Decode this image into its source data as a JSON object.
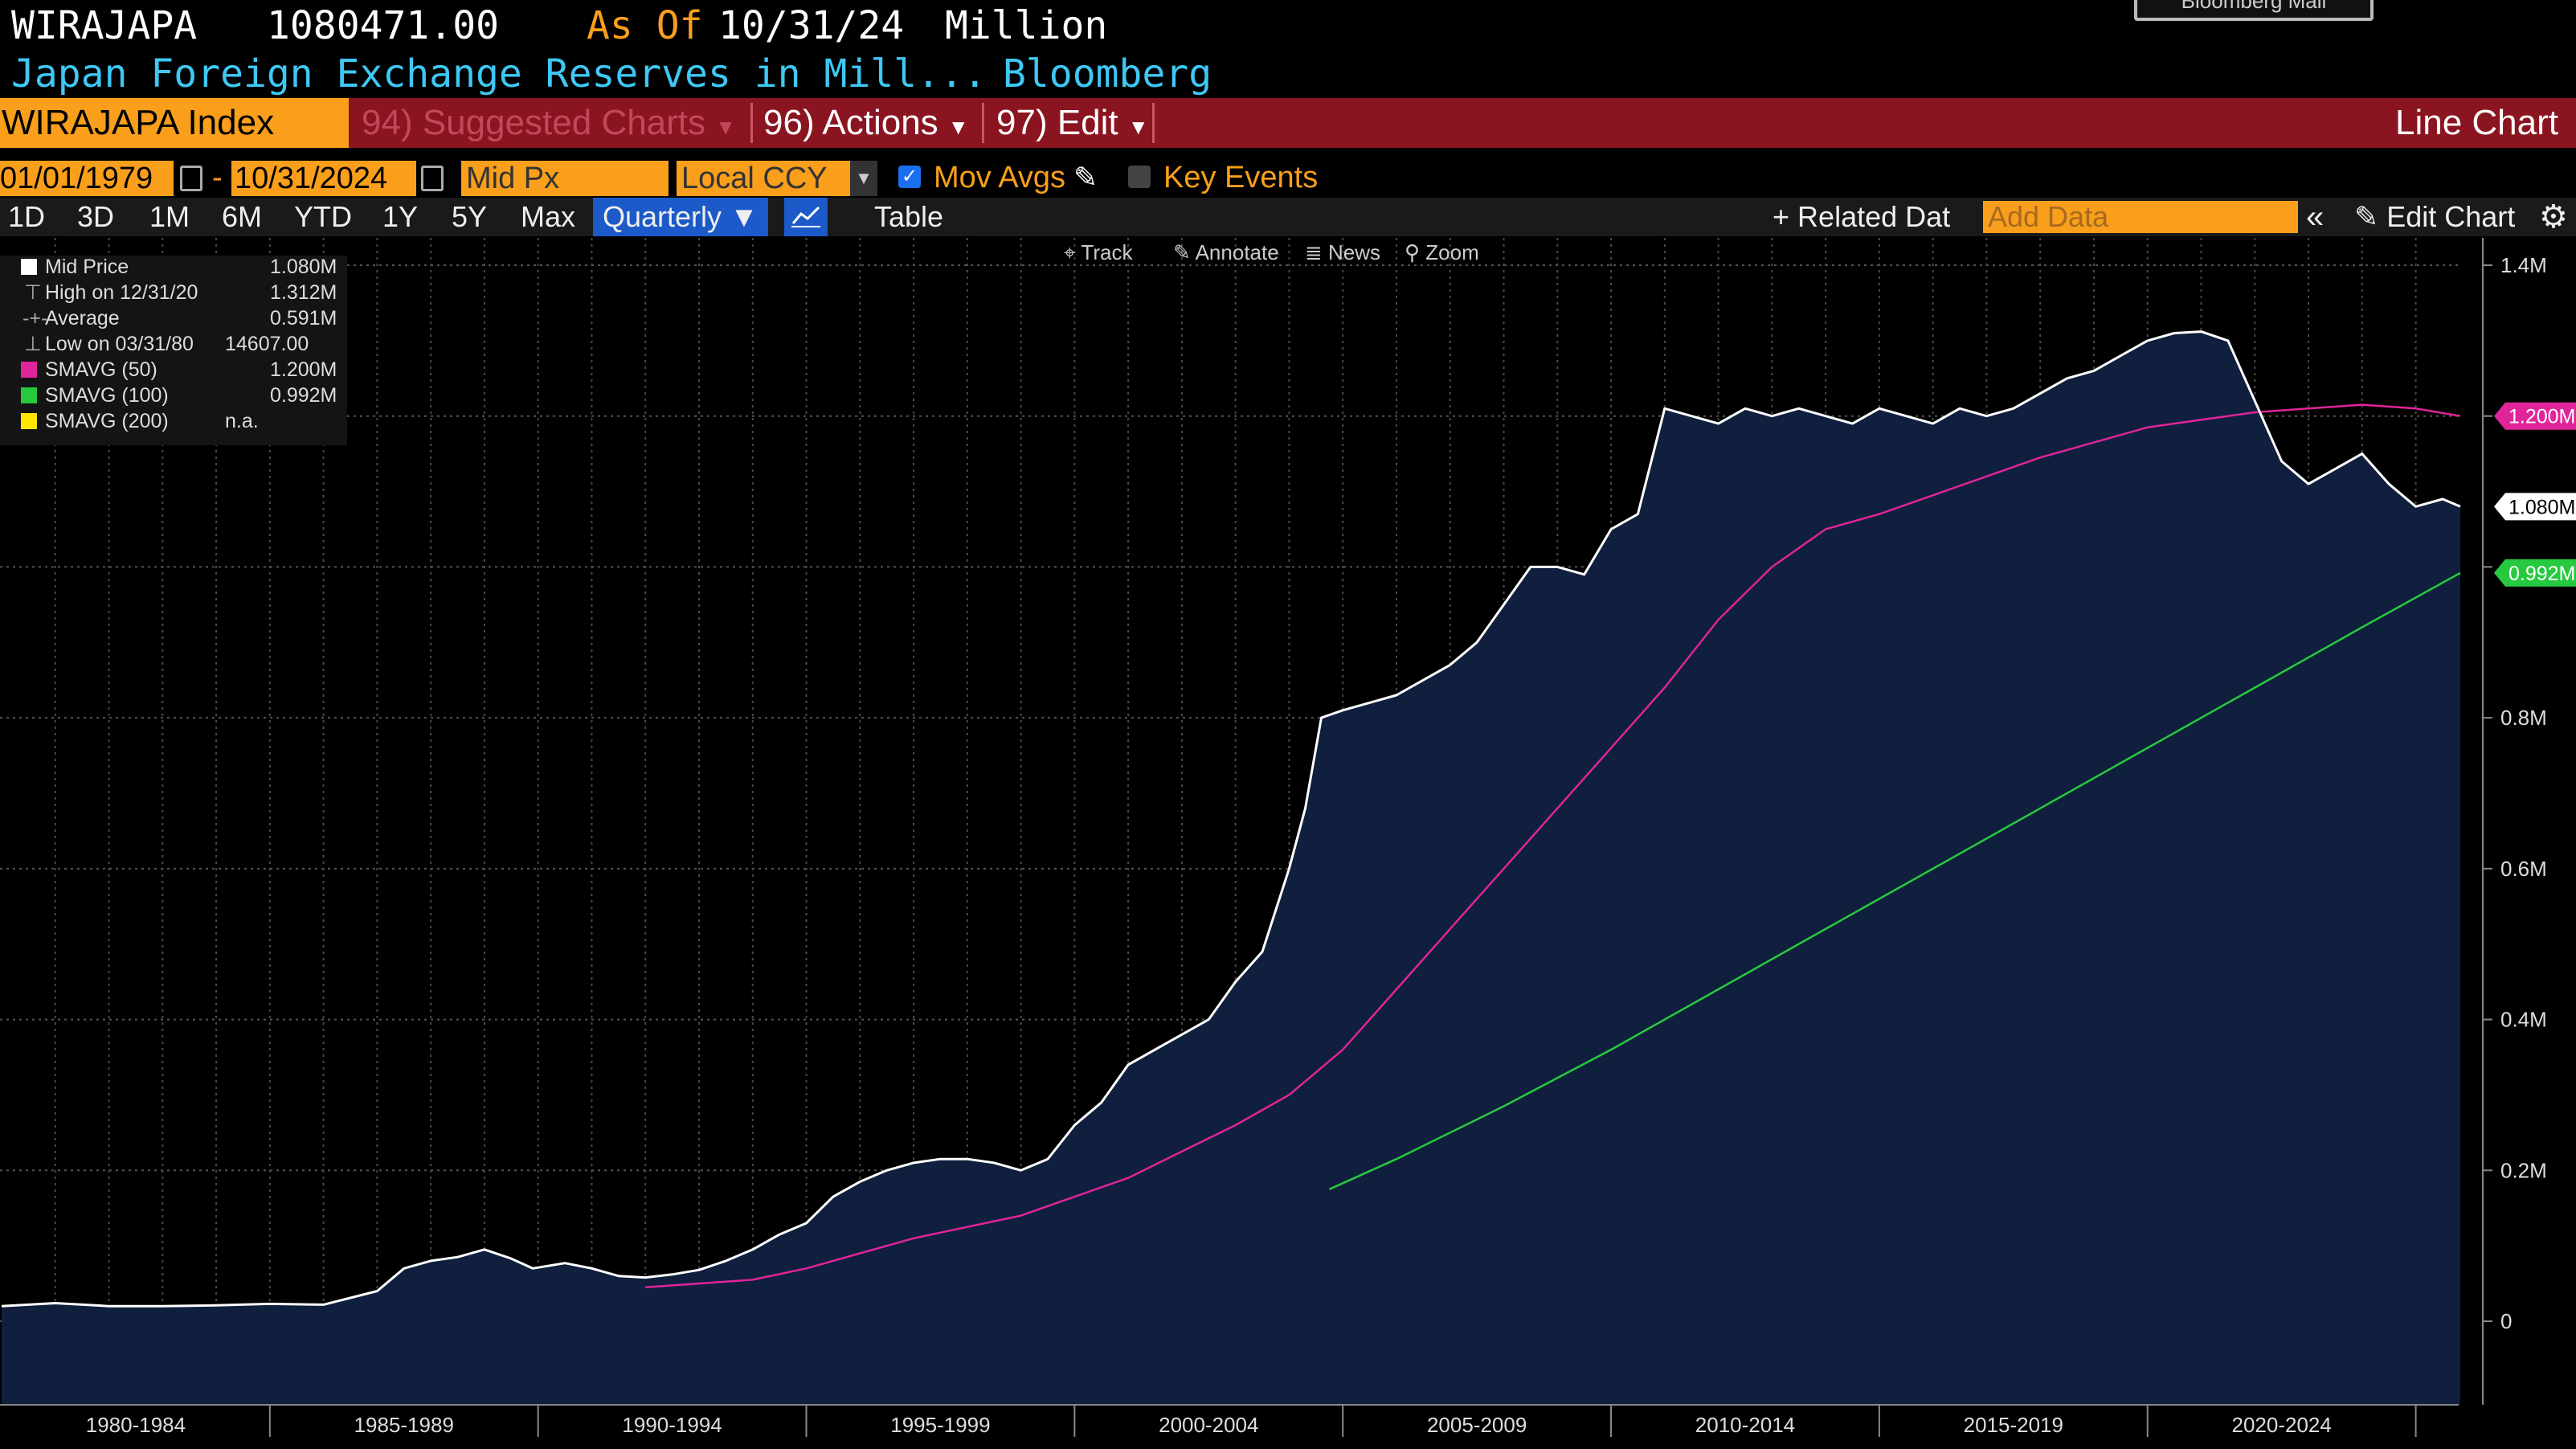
{
  "header": {
    "ticker": "WIRAJAPA",
    "value": "1080471.00",
    "as_of_label": "As Of",
    "as_of_date": "10/31/24",
    "unit": "Million",
    "description": "Japan Foreign Exchange Reserves in Mill...",
    "source": "Bloomberg",
    "badge": "Bloomberg Mail"
  },
  "menubar": {
    "security": "WIRAJAPA Index",
    "suggested": "94) Suggested Charts",
    "actions": "96) Actions",
    "edit": "97) Edit",
    "chart_type": "Line Chart"
  },
  "controls": {
    "start_date": "01/01/1979",
    "end_date": "10/31/2024",
    "dash": "-",
    "field": "Mid Px",
    "currency": "Local CCY",
    "mov_avgs": "Mov Avgs",
    "mov_avgs_checked": true,
    "key_events": "Key Events",
    "key_events_checked": false
  },
  "ranges": [
    "1D",
    "3D",
    "1M",
    "6M",
    "YTD",
    "1Y",
    "5Y",
    "Max"
  ],
  "periodicity": "Quarterly",
  "table_label": "Table",
  "related_data": "Related Dat",
  "add_data_placeholder": "Add Data",
  "edit_chart": "Edit Chart",
  "plot_tools": [
    "Track",
    "Annotate",
    "News",
    "Zoom"
  ],
  "legend": [
    {
      "label": "Mid Price",
      "value": "1.080M",
      "color": "#ffffff"
    },
    {
      "label": "High on 12/31/20",
      "value": "1.312M",
      "color": ""
    },
    {
      "label": "Average",
      "value": "0.591M",
      "color": ""
    },
    {
      "label": "Low on 03/31/80",
      "value": "14607.00",
      "color": ""
    },
    {
      "label": "SMAVG (50)",
      "value": "1.200M",
      "color": "#e0249a"
    },
    {
      "label": "SMAVG (100)",
      "value": "0.992M",
      "color": "#27c93f"
    },
    {
      "label": "SMAVG (200)",
      "value": "n.a.",
      "color": "#ffe600"
    }
  ],
  "chart_data": {
    "type": "area",
    "title": "Japan Foreign Exchange Reserves in Mill...",
    "xlabel": "",
    "ylabel": "",
    "x_range": [
      1979.0,
      2024.83
    ],
    "ylim": [
      -0.1,
      1.4
    ],
    "y_unit": "M",
    "y_ticks": [
      0,
      0.2,
      0.4,
      0.6,
      0.8,
      1.0,
      1.2,
      1.4
    ],
    "y_tick_labels": [
      "0",
      "0.2M",
      "0.4M",
      "0.6M",
      "0.8M",
      "",
      "",
      "1.4M"
    ],
    "x_tick_labels": [
      "1980-1984",
      "1985-1989",
      "1990-1994",
      "1995-1999",
      "2000-2004",
      "2005-2009",
      "2010-2014",
      "2015-2019",
      "2020-2024"
    ],
    "x_label_centers": [
      1981.5,
      1986.5,
      1991.5,
      1996.5,
      2001.5,
      2006.5,
      2011.5,
      2016.5,
      2021.5
    ],
    "x_dividers": [
      1984,
      1989,
      1994,
      1999,
      2004,
      2009,
      2014,
      2019,
      2024
    ],
    "grid": true,
    "legend_position": "top-left",
    "series": [
      {
        "name": "Mid Price",
        "color": "#ffffff",
        "fill": "#0f1f3d",
        "x": [
          1979.0,
          1980.0,
          1981.0,
          1982.0,
          1983.0,
          1984.0,
          1985.0,
          1986.0,
          1986.5,
          1987.0,
          1987.5,
          1988.0,
          1988.5,
          1988.9,
          1989.5,
          1990.0,
          1990.5,
          1991.0,
          1991.5,
          1992.0,
          1992.5,
          1993.0,
          1993.5,
          1994.0,
          1994.5,
          1995.0,
          1995.5,
          1996.0,
          1996.5,
          1997.0,
          1997.5,
          1998.0,
          1998.5,
          1999.0,
          1999.5,
          2000.0,
          2000.5,
          2001.0,
          2001.5,
          2002.0,
          2002.5,
          2003.0,
          2003.3,
          2003.6,
          2004.0,
          2004.5,
          2005.0,
          2005.5,
          2006.0,
          2006.5,
          2007.0,
          2007.5,
          2008.0,
          2008.5,
          2009.0,
          2009.5,
          2010.0,
          2010.5,
          2011.0,
          2011.5,
          2012.0,
          2012.5,
          2013.0,
          2013.5,
          2014.0,
          2014.5,
          2015.0,
          2015.5,
          2016.0,
          2016.5,
          2017.0,
          2017.5,
          2018.0,
          2018.5,
          2019.0,
          2019.5,
          2020.0,
          2020.5,
          2021.0,
          2021.5,
          2022.0,
          2022.5,
          2023.0,
          2023.5,
          2024.0,
          2024.5,
          2024.83
        ],
        "values": [
          0.02,
          0.024,
          0.02,
          0.02,
          0.021,
          0.023,
          0.022,
          0.04,
          0.07,
          0.08,
          0.085,
          0.095,
          0.083,
          0.07,
          0.077,
          0.07,
          0.06,
          0.058,
          0.062,
          0.068,
          0.08,
          0.095,
          0.115,
          0.13,
          0.165,
          0.185,
          0.2,
          0.21,
          0.215,
          0.215,
          0.21,
          0.2,
          0.215,
          0.26,
          0.29,
          0.34,
          0.36,
          0.38,
          0.4,
          0.45,
          0.49,
          0.6,
          0.68,
          0.8,
          0.81,
          0.82,
          0.83,
          0.85,
          0.87,
          0.9,
          0.95,
          1.0,
          1.0,
          0.99,
          1.05,
          1.07,
          1.21,
          1.2,
          1.19,
          1.21,
          1.2,
          1.21,
          1.2,
          1.19,
          1.21,
          1.2,
          1.19,
          1.21,
          1.2,
          1.21,
          1.23,
          1.25,
          1.26,
          1.28,
          1.3,
          1.31,
          1.312,
          1.3,
          1.22,
          1.14,
          1.11,
          1.13,
          1.15,
          1.11,
          1.08,
          1.09,
          1.08
        ]
      },
      {
        "name": "SMAVG (50)",
        "color": "#e0249a",
        "x": [
          1991.0,
          1992.0,
          1993.0,
          1994.0,
          1995.0,
          1996.0,
          1997.0,
          1998.0,
          1999.0,
          2000.0,
          2001.0,
          2002.0,
          2003.0,
          2003.5,
          2004.0,
          2005.0,
          2006.0,
          2007.0,
          2008.0,
          2009.0,
          2010.0,
          2011.0,
          2012.0,
          2013.0,
          2014.0,
          2015.0,
          2016.0,
          2017.0,
          2018.0,
          2019.0,
          2020.0,
          2021.0,
          2022.0,
          2023.0,
          2024.0,
          2024.83
        ],
        "values": [
          0.045,
          0.05,
          0.055,
          0.07,
          0.09,
          0.11,
          0.125,
          0.14,
          0.165,
          0.19,
          0.225,
          0.26,
          0.3,
          0.33,
          0.36,
          0.44,
          0.52,
          0.6,
          0.68,
          0.76,
          0.84,
          0.93,
          1.0,
          1.05,
          1.07,
          1.095,
          1.12,
          1.145,
          1.165,
          1.185,
          1.195,
          1.205,
          1.21,
          1.215,
          1.21,
          1.2
        ]
      },
      {
        "name": "SMAVG (100)",
        "color": "#27c93f",
        "x": [
          2003.75,
          2005.0,
          2007.0,
          2009.0,
          2011.0,
          2013.0,
          2015.0,
          2017.0,
          2019.0,
          2021.0,
          2023.0,
          2024.83
        ],
        "values": [
          0.175,
          0.215,
          0.285,
          0.36,
          0.44,
          0.52,
          0.6,
          0.68,
          0.76,
          0.84,
          0.92,
          0.992
        ]
      }
    ],
    "last_value_labels": [
      {
        "text": "1.200M",
        "value": 1.2,
        "color": "#e0249a"
      },
      {
        "text": "1.080M",
        "value": 1.08,
        "color": "#ffffff"
      },
      {
        "text": "0.992M",
        "value": 0.992,
        "color": "#27c93f"
      }
    ]
  }
}
